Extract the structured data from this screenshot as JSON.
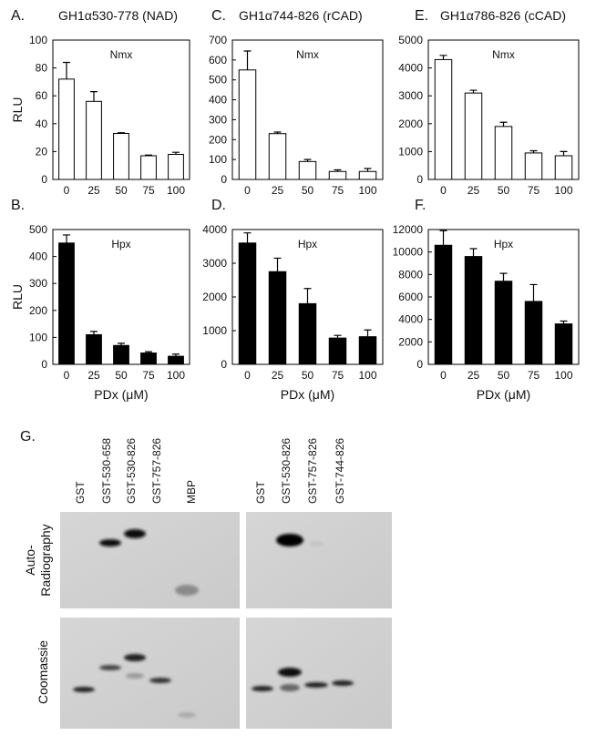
{
  "chart_data": [
    {
      "type": "bar",
      "panel_label": "A.",
      "title": "GH1α530-778 (NAD)",
      "annotation": "Nmx",
      "ylabel": "RLU",
      "categories": [
        0,
        25,
        50,
        75,
        100
      ],
      "values": [
        72,
        56,
        33,
        17,
        18
      ],
      "errors": [
        12,
        7,
        0.5,
        0.5,
        1.5
      ],
      "color": "#ffffff",
      "ylim": [
        0,
        100
      ],
      "yticks": [
        0,
        20,
        40,
        60,
        80,
        100
      ]
    },
    {
      "type": "bar",
      "panel_label": "B.",
      "annotation": "Hpx",
      "ylabel": "RLU",
      "xlabel": "PDx (μM)",
      "categories": [
        0,
        25,
        50,
        75,
        100
      ],
      "values": [
        450,
        110,
        70,
        42,
        30
      ],
      "errors": [
        30,
        12,
        8,
        5,
        8
      ],
      "color": "#000000",
      "ylim": [
        0,
        500
      ],
      "yticks": [
        0,
        100,
        200,
        300,
        400,
        500
      ]
    },
    {
      "type": "bar",
      "panel_label": "C.",
      "title": "GH1α744-826 (rCAD)",
      "annotation": "Nmx",
      "categories": [
        0,
        25,
        50,
        75,
        100
      ],
      "values": [
        550,
        230,
        90,
        40,
        40
      ],
      "errors": [
        95,
        8,
        10,
        8,
        15
      ],
      "color": "#ffffff",
      "ylim": [
        0,
        700
      ],
      "yticks": [
        0,
        100,
        200,
        300,
        400,
        500,
        600,
        700
      ]
    },
    {
      "type": "bar",
      "panel_label": "D.",
      "annotation": "Hpx",
      "xlabel": "PDx (μM)",
      "categories": [
        0,
        25,
        50,
        75,
        100
      ],
      "values": [
        3600,
        2750,
        1800,
        780,
        820
      ],
      "errors": [
        300,
        400,
        450,
        80,
        200
      ],
      "color": "#000000",
      "ylim": [
        0,
        4000
      ],
      "yticks": [
        0,
        1000,
        2000,
        3000,
        4000
      ]
    },
    {
      "type": "bar",
      "panel_label": "E.",
      "title": "GH1α786-826 (cCAD)",
      "annotation": "Nmx",
      "categories": [
        0,
        25,
        50,
        75,
        100
      ],
      "values": [
        4300,
        3100,
        1900,
        950,
        850
      ],
      "errors": [
        150,
        100,
        150,
        80,
        150
      ],
      "color": "#ffffff",
      "ylim": [
        0,
        5000
      ],
      "yticks": [
        0,
        1000,
        2000,
        3000,
        4000,
        5000
      ]
    },
    {
      "type": "bar",
      "panel_label": "F.",
      "annotation": "Hpx",
      "xlabel": "PDx (μM)",
      "categories": [
        0,
        25,
        50,
        75,
        100
      ],
      "values": [
        10600,
        9600,
        7400,
        5600,
        3600
      ],
      "errors": [
        1300,
        700,
        700,
        1500,
        250
      ],
      "color": "#000000",
      "ylim": [
        0,
        12000
      ],
      "yticks": [
        0,
        2000,
        4000,
        6000,
        8000,
        10000,
        12000
      ]
    }
  ],
  "gel": {
    "panel_label": "G.",
    "left_lanes": [
      "GST",
      "GST-530-658",
      "GST-530-826",
      "GST-757-826",
      "MBP"
    ],
    "right_lanes": [
      "GST",
      "GST-530-826",
      "GST-757-826",
      "GST-744-826"
    ],
    "autoradiography_label": [
      "Auto-",
      "Radiography"
    ],
    "coomassie_label": "Coomassie"
  }
}
